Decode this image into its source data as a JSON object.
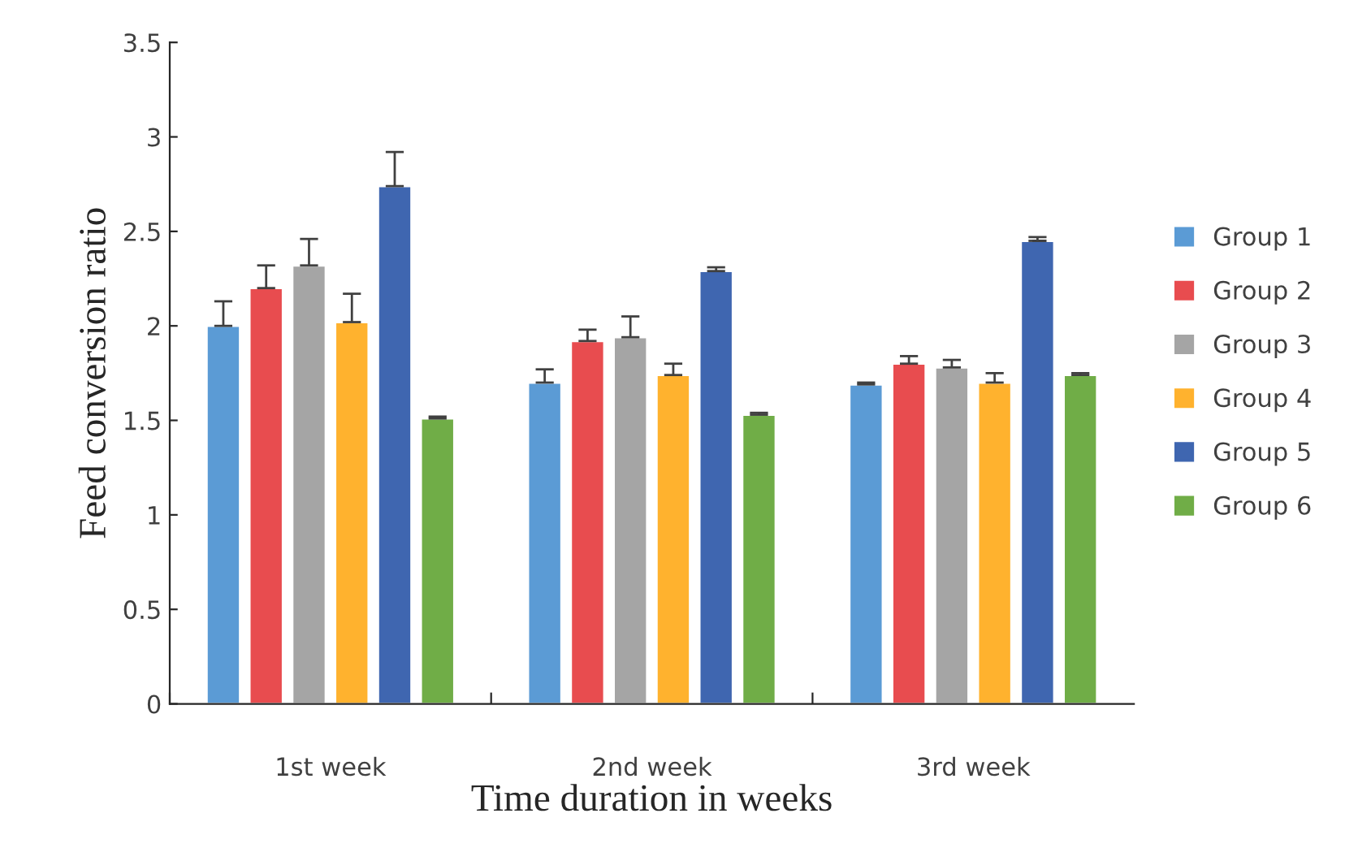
{
  "chart_data": {
    "type": "bar",
    "xlabel": "Time duration in weeks",
    "ylabel": "Feed conversion ratio",
    "categories": [
      "1st week",
      "2nd week",
      "3rd week"
    ],
    "series": [
      {
        "name": "Group 1",
        "color": "#5b9bd5",
        "values": [
          2.0,
          1.7,
          1.69
        ],
        "errors": [
          0.13,
          0.07,
          0.01
        ]
      },
      {
        "name": "Group 2",
        "color": "#e84c4f",
        "values": [
          2.2,
          1.92,
          1.8
        ],
        "errors": [
          0.12,
          0.06,
          0.04
        ]
      },
      {
        "name": "Group 3",
        "color": "#a5a5a5",
        "values": [
          2.32,
          1.94,
          1.78
        ],
        "errors": [
          0.14,
          0.11,
          0.04
        ]
      },
      {
        "name": "Group 4",
        "color": "#ffb22e",
        "values": [
          2.02,
          1.74,
          1.7
        ],
        "errors": [
          0.15,
          0.06,
          0.05
        ]
      },
      {
        "name": "Group 5",
        "color": "#3f66b0",
        "values": [
          2.74,
          2.29,
          2.45
        ],
        "errors": [
          0.18,
          0.02,
          0.02
        ]
      },
      {
        "name": "Group 6",
        "color": "#70ad47",
        "values": [
          1.51,
          1.53,
          1.74
        ],
        "errors": [
          0.01,
          0.01,
          0.01
        ]
      }
    ],
    "ylim": [
      0,
      3.5
    ],
    "yticks": [
      0,
      {
        "value": 0.5,
        "label": "0.5"
      },
      1,
      1.5,
      2,
      2.5,
      3,
      3.5
    ],
    "grid": false,
    "legend": "right"
  }
}
